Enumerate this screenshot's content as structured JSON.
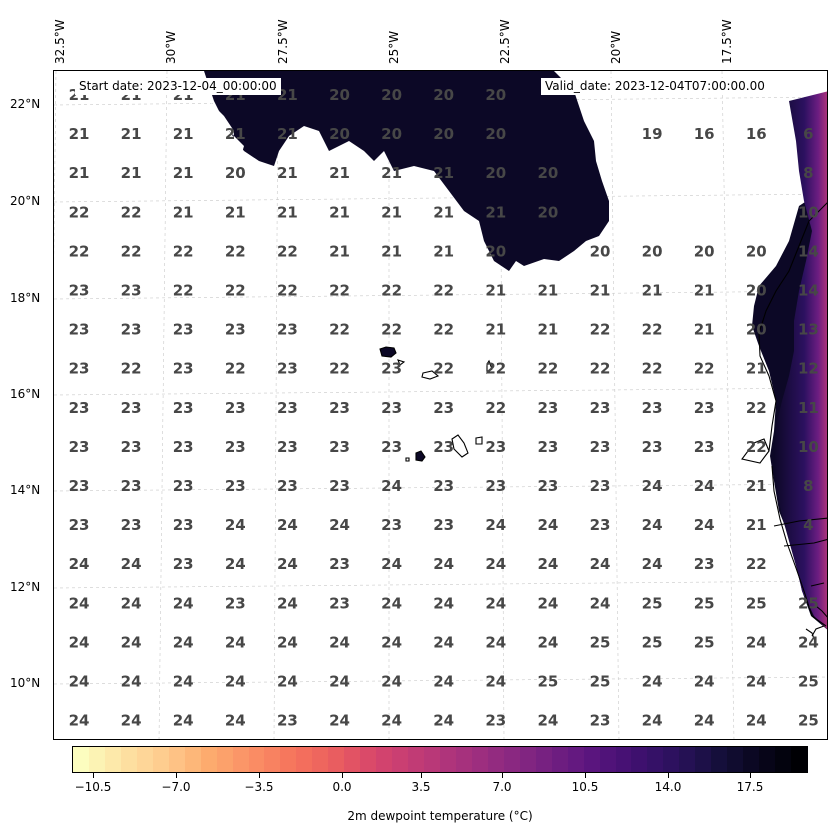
{
  "map": {
    "lon_labels": [
      "32.5°W",
      "30°W",
      "27.5°W",
      "25°W",
      "22.5°W",
      "20°W",
      "17.5°W"
    ],
    "lat_labels": [
      "22°N",
      "20°N",
      "18°N",
      "16°N",
      "14°N",
      "12°N",
      "10°N"
    ],
    "start_date": "Start date: 2023-12-04_00:00:00",
    "valid_date": "Valid_date: 2023-12-04T07:00:00.00",
    "value_color": "#474747",
    "grid": [
      [
        21,
        21,
        21,
        21,
        21,
        20,
        20,
        20,
        20,
        null,
        null,
        null,
        null,
        null,
        null
      ],
      [
        21,
        21,
        21,
        21,
        21,
        20,
        20,
        20,
        20,
        null,
        null,
        19,
        16,
        16,
        6
      ],
      [
        21,
        21,
        21,
        20,
        21,
        21,
        21,
        21,
        20,
        20,
        null,
        null,
        null,
        null,
        8
      ],
      [
        22,
        22,
        21,
        21,
        21,
        21,
        21,
        21,
        21,
        20,
        null,
        null,
        null,
        null,
        10
      ],
      [
        22,
        22,
        22,
        22,
        22,
        21,
        21,
        21,
        20,
        null,
        20,
        20,
        20,
        20,
        14
      ],
      [
        23,
        23,
        22,
        22,
        22,
        22,
        22,
        22,
        21,
        21,
        21,
        21,
        21,
        20,
        14
      ],
      [
        23,
        23,
        23,
        23,
        23,
        22,
        22,
        22,
        21,
        21,
        22,
        22,
        21,
        20,
        13
      ],
      [
        23,
        22,
        23,
        22,
        23,
        22,
        23,
        22,
        22,
        22,
        22,
        22,
        22,
        21,
        12
      ],
      [
        23,
        23,
        23,
        23,
        23,
        23,
        23,
        23,
        22,
        23,
        23,
        23,
        23,
        22,
        11
      ],
      [
        23,
        23,
        23,
        23,
        23,
        23,
        23,
        23,
        23,
        23,
        23,
        23,
        23,
        22,
        10
      ],
      [
        23,
        23,
        23,
        23,
        23,
        23,
        24,
        23,
        23,
        23,
        23,
        24,
        24,
        21,
        8
      ],
      [
        23,
        23,
        23,
        24,
        24,
        24,
        23,
        23,
        24,
        24,
        23,
        24,
        24,
        21,
        4
      ],
      [
        24,
        24,
        23,
        24,
        24,
        23,
        24,
        24,
        24,
        24,
        24,
        24,
        23,
        22,
        null
      ],
      [
        24,
        24,
        24,
        23,
        24,
        23,
        24,
        24,
        24,
        24,
        24,
        25,
        25,
        25,
        25
      ],
      [
        24,
        24,
        24,
        24,
        24,
        24,
        24,
        24,
        24,
        24,
        25,
        25,
        25,
        24,
        24
      ],
      [
        24,
        24,
        24,
        24,
        24,
        24,
        24,
        24,
        24,
        25,
        25,
        24,
        24,
        24,
        25
      ],
      [
        24,
        24,
        24,
        24,
        23,
        24,
        24,
        24,
        23,
        24,
        23,
        24,
        24,
        24,
        25
      ]
    ]
  },
  "colorbar": {
    "label": "2m dewpoint temperature ($^\\circ$C)",
    "label_display": "2m dewpoint temperature (°C)",
    "tick_labels": [
      "−10.5",
      "−7.0",
      "−3.5",
      "0.0",
      "3.5",
      "7.0",
      "10.5",
      "14.0",
      "17.5"
    ],
    "range": [
      -12.2,
      19.6
    ],
    "colormap": "magma_r"
  }
}
